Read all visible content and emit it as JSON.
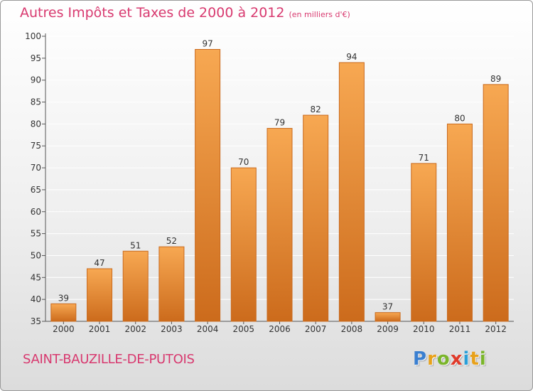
{
  "chart_data": {
    "type": "bar",
    "title": "Autres Impôts et Taxes de 2000 à 2012",
    "subtitle": "(en milliers d'€)",
    "xlabel": "",
    "ylabel": "",
    "categories": [
      "2000",
      "2001",
      "2002",
      "2003",
      "2004",
      "2005",
      "2006",
      "2007",
      "2008",
      "2009",
      "2010",
      "2011",
      "2012"
    ],
    "values": [
      39,
      47,
      51,
      52,
      97,
      70,
      79,
      82,
      94,
      37,
      71,
      80,
      89
    ],
    "ylim": [
      35,
      100
    ],
    "yticks": [
      35,
      40,
      45,
      50,
      55,
      60,
      65,
      70,
      75,
      80,
      85,
      90,
      95,
      100
    ],
    "grid": true,
    "colors": {
      "bar_top": "#f7a852",
      "bar_bottom": "#cc6b1c",
      "bar_edge": "#c96a1e",
      "grid": "#ffffff"
    }
  },
  "footer": {
    "commune": "SAINT-BAUZILLE-DE-PUTOIS",
    "logo_letters": [
      {
        "ch": "P",
        "color": "#3a7fd0"
      },
      {
        "ch": "r",
        "color": "#e8a11a"
      },
      {
        "ch": "o",
        "color": "#7ab52a"
      },
      {
        "ch": "x",
        "color": "#e03a2a"
      },
      {
        "ch": "i",
        "color": "#2a9fd8"
      },
      {
        "ch": "t",
        "color": "#e8a11a"
      },
      {
        "ch": "i",
        "color": "#7ab52a"
      }
    ]
  }
}
